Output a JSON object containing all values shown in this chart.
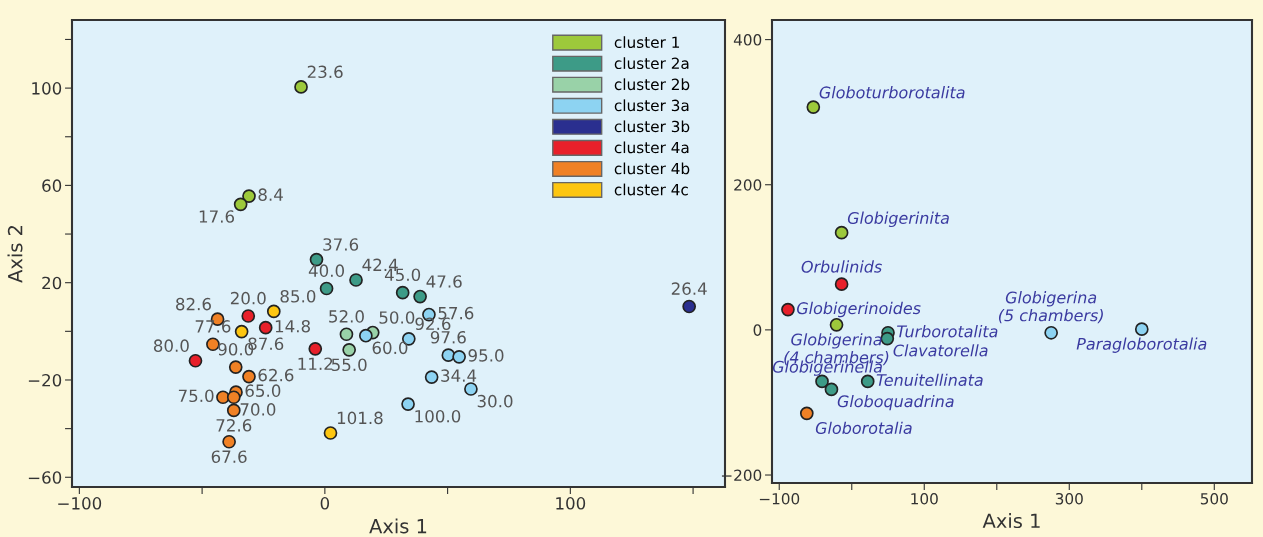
{
  "chart_data": [
    {
      "type": "scatter",
      "xlabel": "Axis 1",
      "ylabel": "Axis 2",
      "marker": "circle",
      "grid": false,
      "legend": "top right",
      "xlim": [
        -103,
        163
      ],
      "ylim": [
        -64,
        128
      ],
      "xticks": [
        {
          "value": -100,
          "label": "−100"
        },
        {
          "value": -50,
          "label": null
        },
        0,
        {
          "value": 50,
          "label": null
        },
        100,
        {
          "value": 150,
          "label": null
        }
      ],
      "yticks": [
        {
          "value": -60,
          "label": "−60"
        },
        {
          "value": -40,
          "label": null
        },
        {
          "value": -20,
          "label": "−20"
        },
        {
          "value": 0,
          "label": null
        },
        20,
        {
          "value": 40,
          "label": null
        },
        60,
        {
          "value": 80,
          "label": null
        },
        100,
        {
          "value": 120,
          "label": null
        }
      ],
      "series": [
        {
          "name": "cluster 1",
          "color": "#9dc93b",
          "x": [
            -9.7,
            -30.9,
            -34.3
          ],
          "values": [
            100.5,
            55.6,
            52.2
          ]
        },
        {
          "name": "cluster 2a",
          "color": "#3d9b87",
          "x": [
            -3.4,
            0.7,
            12.7,
            31.7,
            38.8
          ],
          "values": [
            29.5,
            17.6,
            21.1,
            15.9,
            14.3
          ]
        },
        {
          "name": "cluster 2b",
          "color": "#99d2a8",
          "x": [
            8.8,
            19.5,
            9.9
          ],
          "values": [
            -1.2,
            -0.5,
            -7.6
          ]
        },
        {
          "name": "cluster 3a",
          "color": "#8dd3f2",
          "x": [
            16.7,
            42.4,
            34.2,
            50.3,
            54.7,
            43.5,
            59.5,
            33.9
          ],
          "values": [
            -1.8,
            6.9,
            -3.1,
            -9.8,
            -10.5,
            -18.8,
            -23.7,
            -29.9
          ]
        },
        {
          "name": "cluster 3b",
          "color": "#2a2f8f",
          "x": [
            148.4
          ],
          "values": [
            10.2
          ]
        },
        {
          "name": "cluster 4a",
          "color": "#e8202a",
          "x": [
            -31.2,
            -24.1,
            -52.7,
            -3.9
          ],
          "values": [
            6.3,
            1.5,
            -12.1,
            -7.2
          ]
        },
        {
          "name": "cluster 4b",
          "color": "#f08125",
          "x": [
            -43.7,
            -45.6,
            -36.3,
            -30.9,
            -41.5,
            -36.2,
            -37.1,
            -37.1,
            -39.0
          ],
          "values": [
            5.0,
            -5.3,
            -14.7,
            -18.6,
            -27.1,
            -25.0,
            -27.1,
            -32.5,
            -45.4
          ]
        },
        {
          "name": "cluster 4c",
          "color": "#fdc611",
          "x": [
            -20.8,
            -33.9,
            2.3
          ],
          "values": [
            8.2,
            -0.1,
            -41.8
          ]
        }
      ],
      "annotations": [
        {
          "text": "23.6",
          "x": -9.7,
          "y": 100.5
        },
        {
          "text": "8.4",
          "x": -30.9,
          "y": 55.6
        },
        {
          "text": "17.6",
          "x": -34.3,
          "y": 52.2
        },
        {
          "text": "37.6",
          "x": -3.4,
          "y": 29.5
        },
        {
          "text": "40.0",
          "x": 0.7,
          "y": 17.6
        },
        {
          "text": "42.4",
          "x": 12.7,
          "y": 21.1
        },
        {
          "text": "45.0",
          "x": 31.7,
          "y": 15.9
        },
        {
          "text": "47.6",
          "x": 38.8,
          "y": 14.3
        },
        {
          "text": "52.0",
          "x": 8.8,
          "y": -1.2
        },
        {
          "text": "50.0",
          "x": 19.5,
          "y": -0.5
        },
        {
          "text": "55.0",
          "x": 9.9,
          "y": -7.6
        },
        {
          "text": "60.0",
          "x": 16.7,
          "y": -1.8
        },
        {
          "text": "57.6",
          "x": 42.4,
          "y": 6.9
        },
        {
          "text": "92.6",
          "x": 34.2,
          "y": -3.1
        },
        {
          "text": "97.6",
          "x": 50.3,
          "y": -9.8
        },
        {
          "text": "95.0",
          "x": 54.7,
          "y": -10.5
        },
        {
          "text": "34.4",
          "x": 43.5,
          "y": -18.8
        },
        {
          "text": "30.0",
          "x": 59.5,
          "y": -23.7
        },
        {
          "text": "100.0",
          "x": 33.9,
          "y": -29.9
        },
        {
          "text": "26.4",
          "x": 148.4,
          "y": 10.2
        },
        {
          "text": "20.0",
          "x": -31.2,
          "y": 6.3
        },
        {
          "text": "14.8",
          "x": -24.1,
          "y": 1.5
        },
        {
          "text": "80.0",
          "x": -52.7,
          "y": -12.1
        },
        {
          "text": "11.2",
          "x": -3.9,
          "y": -7.2
        },
        {
          "text": "82.6",
          "x": -43.7,
          "y": 5.0
        },
        {
          "text": "77.6",
          "x": -45.6,
          "y": -5.3
        },
        {
          "text": "90.0",
          "x": -36.3,
          "y": -14.7
        },
        {
          "text": "62.6",
          "x": -30.9,
          "y": -18.6
        },
        {
          "text": "75.0",
          "x": -41.5,
          "y": -27.1
        },
        {
          "text": "65.0",
          "x": -36.2,
          "y": -25.0
        },
        {
          "text": "70.0",
          "x": -37.1,
          "y": -27.1
        },
        {
          "text": "72.6",
          "x": -37.1,
          "y": -32.5
        },
        {
          "text": "67.6",
          "x": -39.0,
          "y": -45.4
        },
        {
          "text": "85.0",
          "x": -20.8,
          "y": 8.2
        },
        {
          "text": "87.6",
          "x": -33.9,
          "y": -0.1
        },
        {
          "text": "101.8",
          "x": 2.3,
          "y": -41.8
        }
      ]
    },
    {
      "type": "scatter",
      "xlabel": "Axis 1",
      "marker": "circle",
      "grid": false,
      "xlim": [
        -110,
        552
      ],
      "ylim": [
        -211,
        427
      ],
      "xticks": [
        {
          "value": -100,
          "label": "−100"
        },
        {
          "value": 0,
          "label": null
        },
        100,
        {
          "value": 200,
          "label": null
        },
        300,
        {
          "value": 400,
          "label": null
        },
        500
      ],
      "yticks": [
        {
          "value": -200,
          "label": "−200"
        },
        0,
        200,
        400
      ],
      "series": [
        {
          "color": "#9dc93b",
          "x": [
            -53,
            -14,
            -21
          ],
          "values": [
            307,
            134,
            7
          ]
        },
        {
          "color": "#e8202a",
          "x": [
            -14,
            -88
          ],
          "values": [
            63,
            28
          ]
        },
        {
          "color": "#3d9b87",
          "x": [
            50,
            49,
            -41,
            -28,
            22
          ],
          "values": [
            -4,
            -12,
            -71,
            -82,
            -71
          ]
        },
        {
          "color": "#f08125",
          "x": [
            -62
          ],
          "values": [
            -115
          ]
        },
        {
          "color": "#8dd3f2",
          "x": [
            275,
            400
          ],
          "values": [
            -4,
            1
          ]
        }
      ],
      "annotations": [
        {
          "text": "Globoturborotalita",
          "x": -53,
          "y": 307
        },
        {
          "text": "Globigerinita",
          "x": -14,
          "y": 134
        },
        {
          "text": "Globigerina\n(4 chambers)",
          "x": -21,
          "y": 7
        },
        {
          "text": "Orbulinids",
          "x": -14,
          "y": 63
        },
        {
          "text": "Globigerinoides",
          "x": -88,
          "y": 28
        },
        {
          "text": "Turborotalita",
          "x": 50,
          "y": -4
        },
        {
          "text": "Clavatorella",
          "x": 49,
          "y": -12
        },
        {
          "text": "Globigerinella",
          "x": -41,
          "y": -71
        },
        {
          "text": "Globoquadrina",
          "x": -28,
          "y": -82
        },
        {
          "text": "Tenuitellinata",
          "x": 22,
          "y": -71
        },
        {
          "text": "Globorotalia",
          "x": -62,
          "y": -115
        },
        {
          "text": "Globigerina\n(5 chambers)",
          "x": 275,
          "y": -4
        },
        {
          "text": "Paragloborotalia",
          "x": 400,
          "y": 1
        }
      ]
    }
  ]
}
